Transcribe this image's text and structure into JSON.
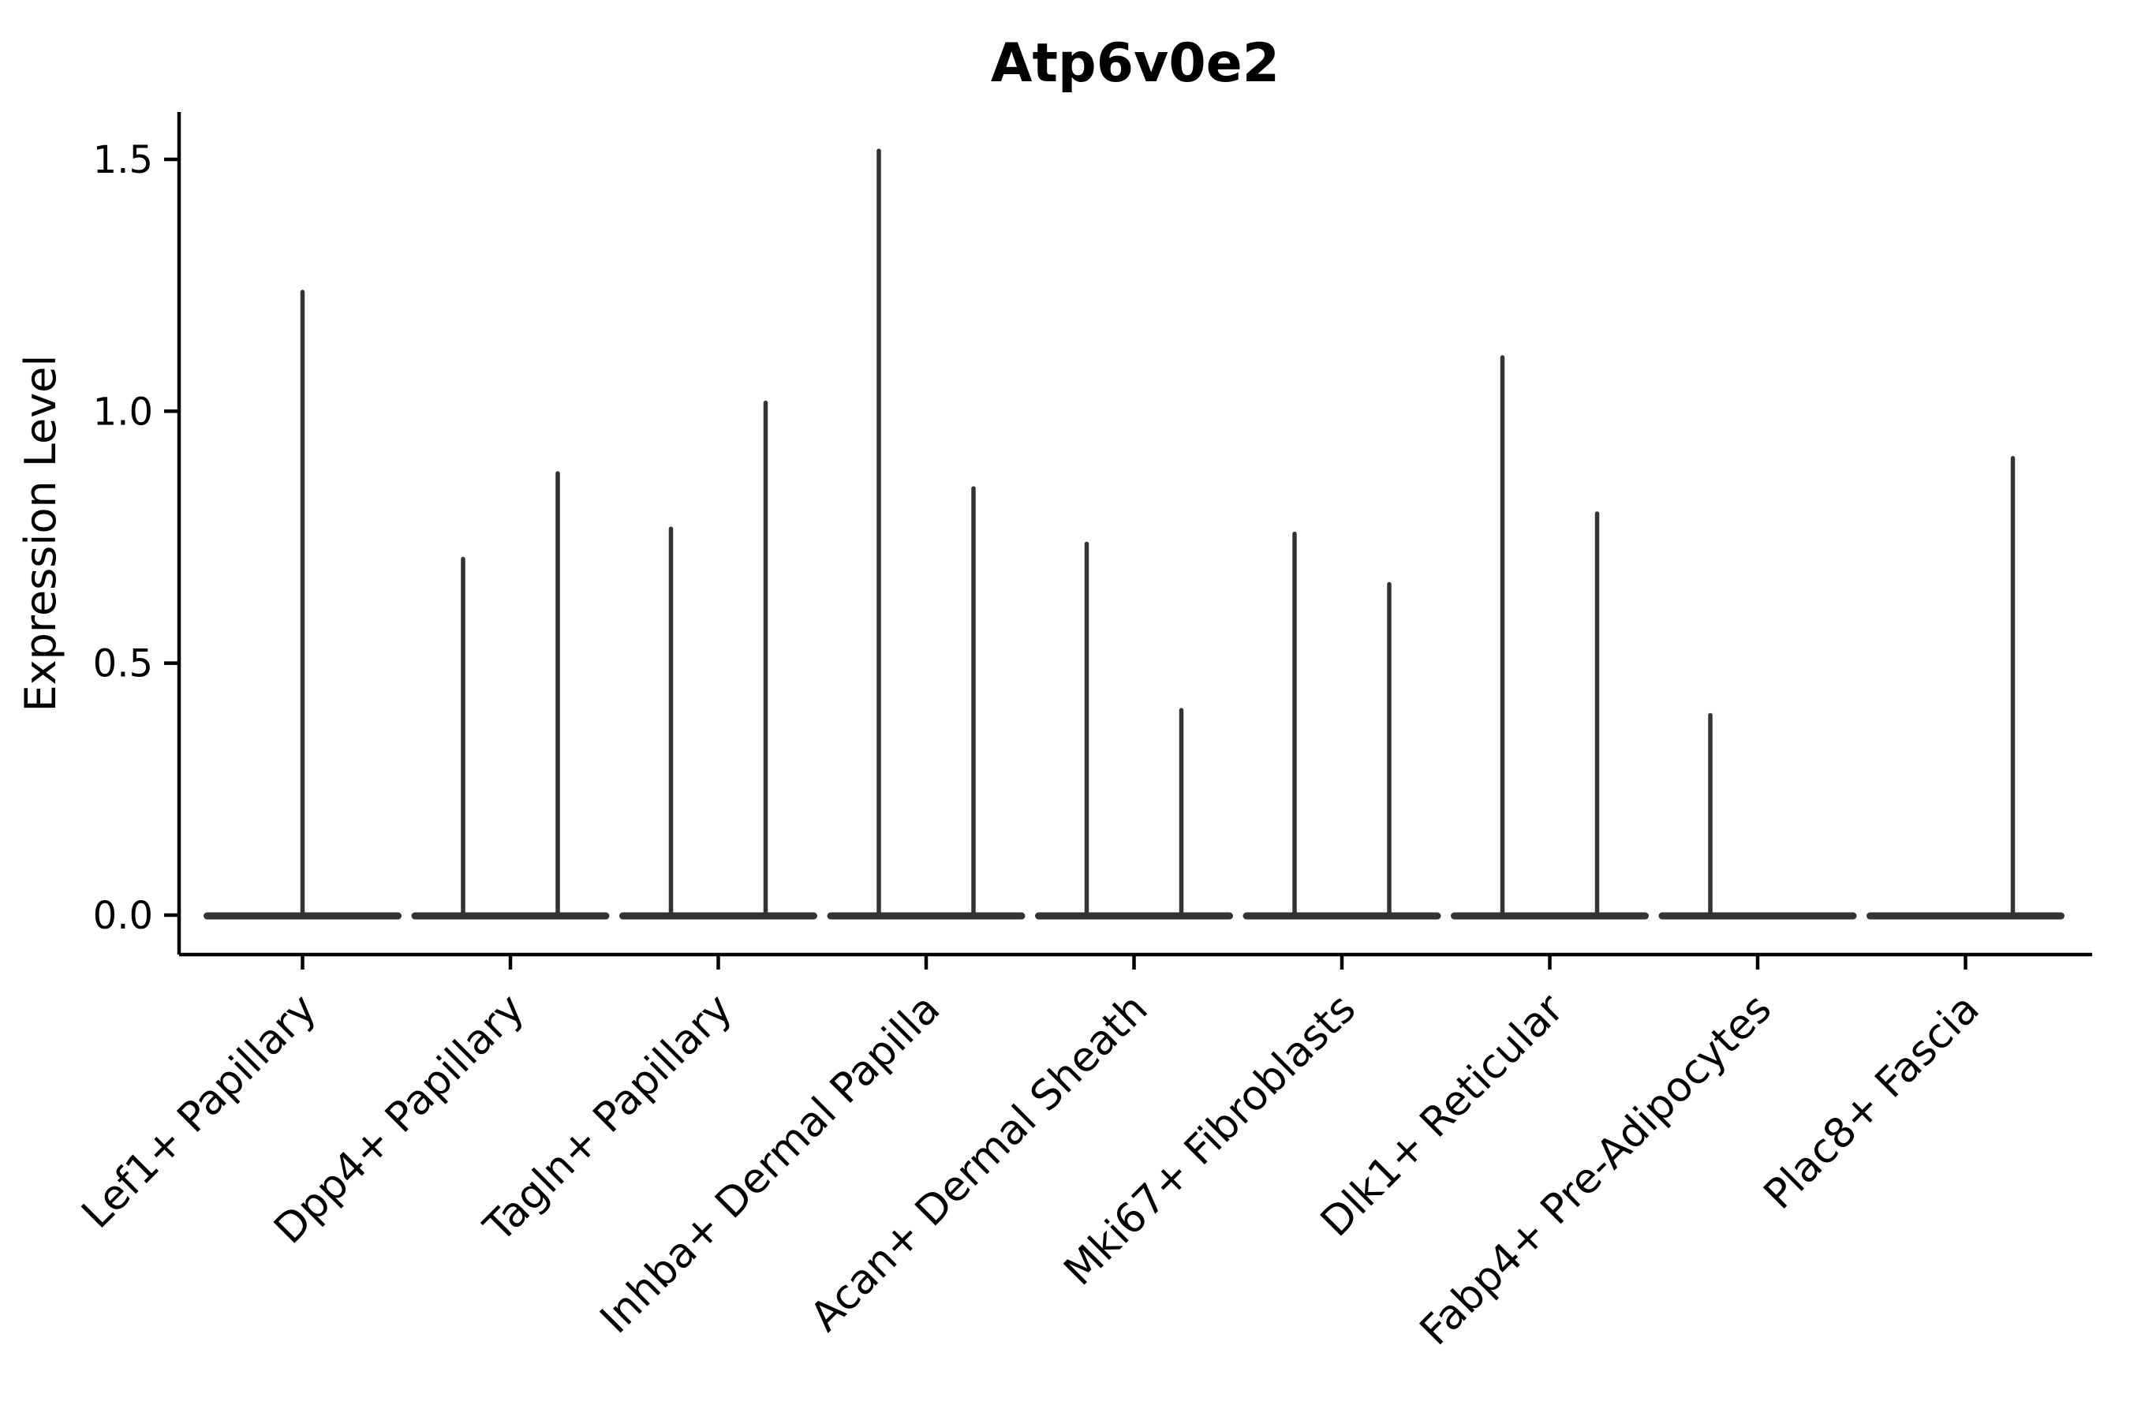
{
  "chart_data": {
    "type": "violin",
    "title": "Atp6v0e2",
    "ylabel": "Expression Level",
    "xlabel": "",
    "yticks": [
      0.0,
      0.5,
      1.0,
      1.5
    ],
    "ytick_labels": [
      "0.0",
      "0.5",
      "1.0",
      "1.5"
    ],
    "ylim": [
      -0.08,
      1.59
    ],
    "grid": false,
    "legend": null,
    "violin_color": "#333333",
    "axis_color": "#000000",
    "background_color": "#ffffff",
    "categories": [
      "Lef1+ Papillary",
      "Dpp4+ Papillary",
      "Tagln+ Papillary",
      "Inhba+ Dermal Papilla",
      "Acan+ Dermal Sheath",
      "Mki67+ Fibroblasts",
      "Dlk1+ Reticular",
      "Fabp4+ Pre-Adipocytes",
      "Plac8+ Fascia"
    ],
    "violins": [
      {
        "category": "Lef1+ Papillary",
        "spikes": [
          {
            "offset": "center",
            "max": 1.24
          }
        ]
      },
      {
        "category": "Dpp4+ Papillary",
        "spikes": [
          {
            "offset": "left",
            "max": 0.71
          },
          {
            "offset": "right",
            "max": 0.88
          }
        ]
      },
      {
        "category": "Tagln+ Papillary",
        "spikes": [
          {
            "offset": "left",
            "max": 0.77
          },
          {
            "offset": "right",
            "max": 1.02
          }
        ]
      },
      {
        "category": "Inhba+ Dermal Papilla",
        "spikes": [
          {
            "offset": "left",
            "max": 1.52
          },
          {
            "offset": "right",
            "max": 0.85
          }
        ]
      },
      {
        "category": "Acan+ Dermal Sheath",
        "spikes": [
          {
            "offset": "left",
            "max": 0.74
          },
          {
            "offset": "right",
            "max": 0.41
          }
        ]
      },
      {
        "category": "Mki67+ Fibroblasts",
        "spikes": [
          {
            "offset": "left",
            "max": 0.76
          },
          {
            "offset": "right",
            "max": 0.66
          }
        ]
      },
      {
        "category": "Dlk1+ Reticular",
        "spikes": [
          {
            "offset": "left",
            "max": 1.11
          },
          {
            "offset": "right",
            "max": 0.8
          }
        ]
      },
      {
        "category": "Fabp4+ Pre-Adipocytes",
        "spikes": [
          {
            "offset": "left",
            "max": 0.4
          }
        ]
      },
      {
        "category": "Plac8+ Fascia",
        "spikes": [
          {
            "offset": "right",
            "max": 0.91
          }
        ]
      }
    ],
    "baseline_value": 0.0
  }
}
